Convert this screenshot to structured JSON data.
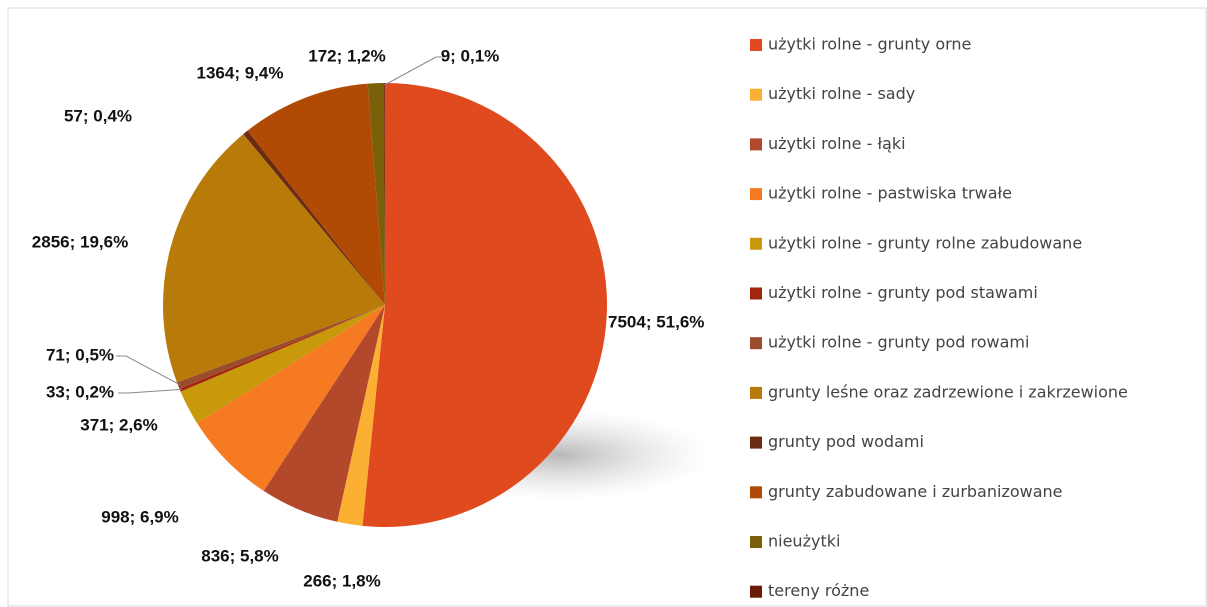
{
  "chart_data": {
    "type": "pie",
    "categories": [
      "użytki rolne - grunty orne",
      "użytki rolne - sady",
      "użytki rolne - łąki",
      "użytki rolne - pastwiska trwałe",
      "użytki rolne - grunty rolne zabudowane",
      "użytki rolne - grunty pod stawami",
      "użytki rolne - grunty pod rowami",
      "grunty leśne oraz zadrzewione i zakrzewione",
      "grunty pod wodami",
      "grunty zabudowane i zurbanizowane",
      "nieużytki",
      "tereny różne"
    ],
    "values": [
      7504,
      266,
      836,
      998,
      371,
      33,
      71,
      2856,
      57,
      1364,
      172,
      9
    ],
    "value_labels": [
      "7504; 51,6%",
      "266; 1,8%",
      "836; 5,8%",
      "998; 6,9%",
      "371; 2,6%",
      "33; 0,2%",
      "71; 0,5%",
      "2856; 19,6%",
      "57; 0,4%",
      "1364; 9,4%",
      "172; 1,2%",
      "9; 0,1%"
    ],
    "colors": [
      "#e04a1f",
      "#fbb034",
      "#b3482b",
      "#f57a22",
      "#c9990c",
      "#a3240f",
      "#9a4c2c",
      "#b87a08",
      "#6b2a12",
      "#b04a04",
      "#7a6008",
      "#6b1a08"
    ],
    "legend": "right"
  }
}
